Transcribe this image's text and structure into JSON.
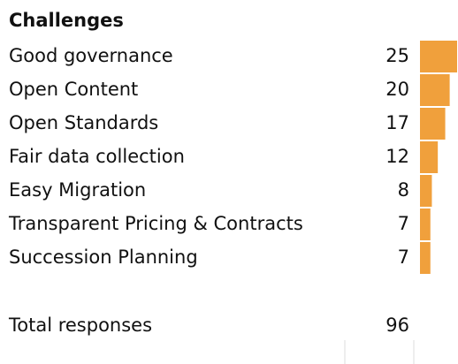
{
  "chart_data": {
    "type": "bar",
    "orientation": "horizontal",
    "title": "Challenges",
    "categories": [
      "Good governance",
      "Open Content",
      "Open Standards",
      "Fair data collection",
      "Easy Migration",
      "Transparent Pricing & Contracts",
      "Succession Planning"
    ],
    "values": [
      25,
      20,
      17,
      12,
      8,
      7,
      7
    ],
    "color": "#f0a03c",
    "total": {
      "label": "Total responses",
      "value": 96
    }
  }
}
